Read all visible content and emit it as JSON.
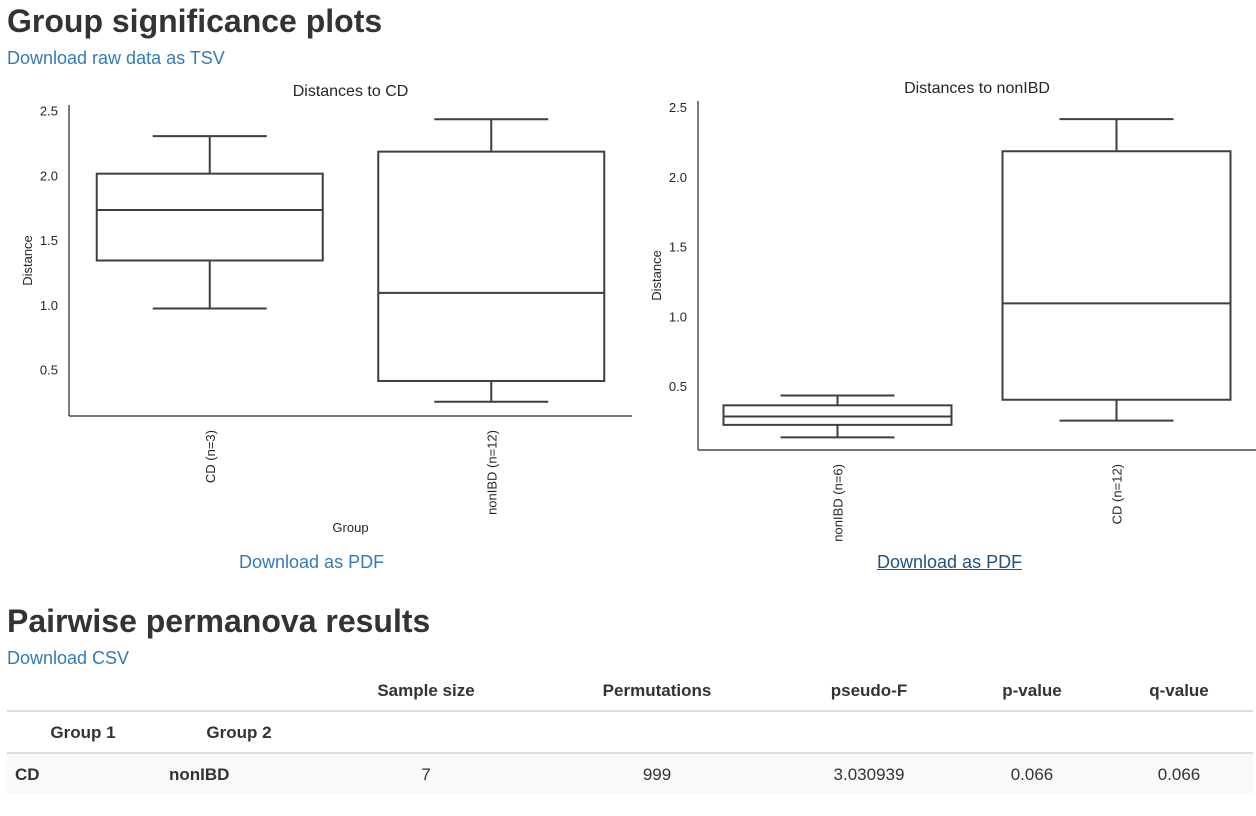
{
  "section1": {
    "title": "Group significance plots",
    "raw_link": "Download raw data as TSV"
  },
  "plots": [
    {
      "pdf_link": "Download as PDF"
    },
    {
      "pdf_link": "Download as PDF"
    }
  ],
  "chart_data": [
    {
      "type": "box",
      "title": "Distances to CD",
      "xlabel": "Group",
      "ylabel": "Distance",
      "ylim": [
        0.15,
        2.55
      ],
      "yticks": [
        "0.5",
        "1.0",
        "1.5",
        "2.0",
        "2.5"
      ],
      "categories": [
        "CD (n=3)",
        "nonIBD (n=12)"
      ],
      "boxes": [
        {
          "whislo": 0.98,
          "q1": 1.35,
          "med": 1.74,
          "q3": 2.02,
          "whishi": 2.31
        },
        {
          "whislo": 0.26,
          "q1": 0.42,
          "med": 1.1,
          "q3": 2.19,
          "whishi": 2.44
        }
      ]
    },
    {
      "type": "box",
      "title": "Distances to nonIBD",
      "xlabel": "",
      "ylabel": "Distance",
      "ylim": [
        0.05,
        2.55
      ],
      "yticks": [
        "0.5",
        "1.0",
        "1.5",
        "2.0",
        "2.5"
      ],
      "categories": [
        "nonIBD (n=6)",
        "CD (n=12)"
      ],
      "boxes": [
        {
          "whislo": 0.14,
          "q1": 0.23,
          "med": 0.29,
          "q3": 0.37,
          "whishi": 0.44
        },
        {
          "whislo": 0.26,
          "q1": 0.41,
          "med": 1.1,
          "q3": 2.19,
          "whishi": 2.42
        }
      ]
    }
  ],
  "section2": {
    "title": "Pairwise permanova results",
    "csv_link": "Download CSV"
  },
  "table": {
    "columns": [
      "Sample size",
      "Permutations",
      "pseudo-F",
      "p-value",
      "q-value"
    ],
    "index_names": [
      "Group 1",
      "Group 2"
    ],
    "rows": [
      {
        "group1": "CD",
        "group2": "nonIBD",
        "values": [
          "7",
          "999",
          "3.030939",
          "0.066",
          "0.066"
        ]
      }
    ]
  }
}
